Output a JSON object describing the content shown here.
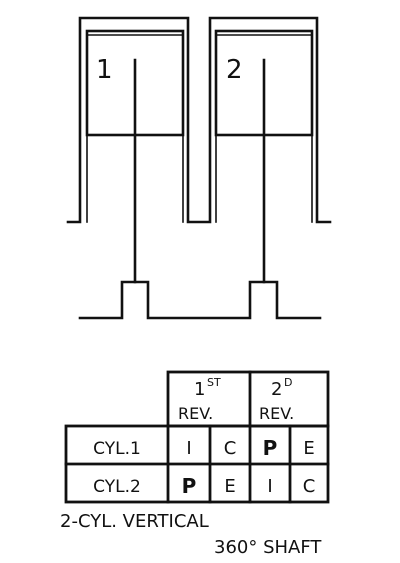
{
  "cylinders": [
    {
      "label": "1"
    },
    {
      "label": "2"
    }
  ],
  "table": {
    "rev1_super": "ST",
    "rev1_num": "1",
    "rev1_label": "REV.",
    "rev2_super": "D",
    "rev2_num": "2",
    "rev2_label": "REV.",
    "rows": [
      {
        "name": "CYL.1",
        "cells": [
          "I",
          "C",
          "P",
          "E"
        ]
      },
      {
        "name": "CYL.2",
        "cells": [
          "P",
          "E",
          "I",
          "C"
        ]
      }
    ]
  },
  "caption": {
    "line1": "2-CYL. VERTICAL",
    "line2": "360° SHAFT"
  },
  "colors": {
    "ink": "#111111",
    "background": "#ffffff"
  }
}
